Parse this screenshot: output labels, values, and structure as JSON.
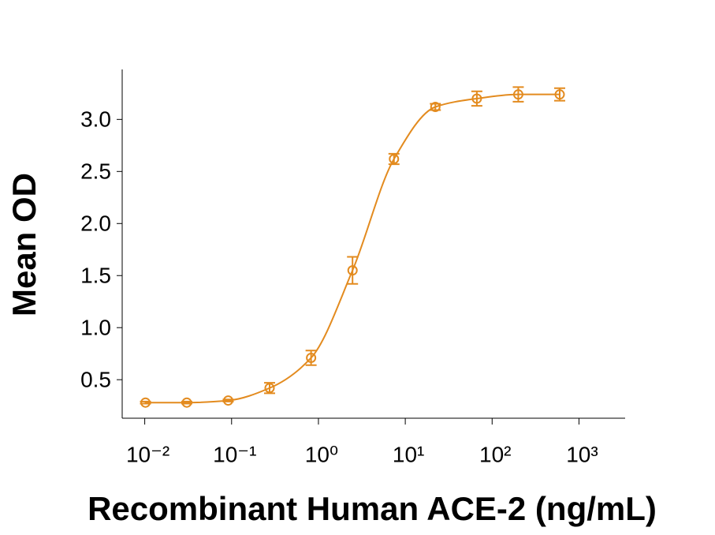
{
  "chart_data": {
    "type": "scatter",
    "x_label": "Recombinant Human ACE-2 (ng/mL)",
    "y_label": "Mean OD",
    "x": [
      0.0102,
      0.0305,
      0.0914,
      0.274,
      0.823,
      2.47,
      7.41,
      22.2,
      66.7,
      200,
      600
    ],
    "values": [
      0.28,
      0.28,
      0.3,
      0.42,
      0.71,
      1.55,
      2.62,
      3.12,
      3.2,
      3.24,
      3.24
    ],
    "errors": [
      0.01,
      0.01,
      0.01,
      0.05,
      0.07,
      0.13,
      0.05,
      0.03,
      0.07,
      0.07,
      0.06
    ],
    "color": "#e38b1f",
    "x_log": true,
    "xlim": [
      0.0055,
      3400
    ],
    "xticks": [
      {
        "value": 0.01,
        "label": "10⁻²"
      },
      {
        "value": 0.1,
        "label": "10⁻¹"
      },
      {
        "value": 1,
        "label": "10⁰"
      },
      {
        "value": 10,
        "label": "10¹"
      },
      {
        "value": 100,
        "label": "10²"
      },
      {
        "value": 1000,
        "label": "10³"
      }
    ],
    "ylim": [
      0.13,
      3.48
    ],
    "yticks": [
      0.5,
      {
        "value": 1,
        "label": "1.0"
      },
      1.5,
      {
        "value": 2,
        "label": "2.0"
      },
      2.5,
      {
        "value": 3,
        "label": "3.0"
      }
    ],
    "grid": false
  }
}
